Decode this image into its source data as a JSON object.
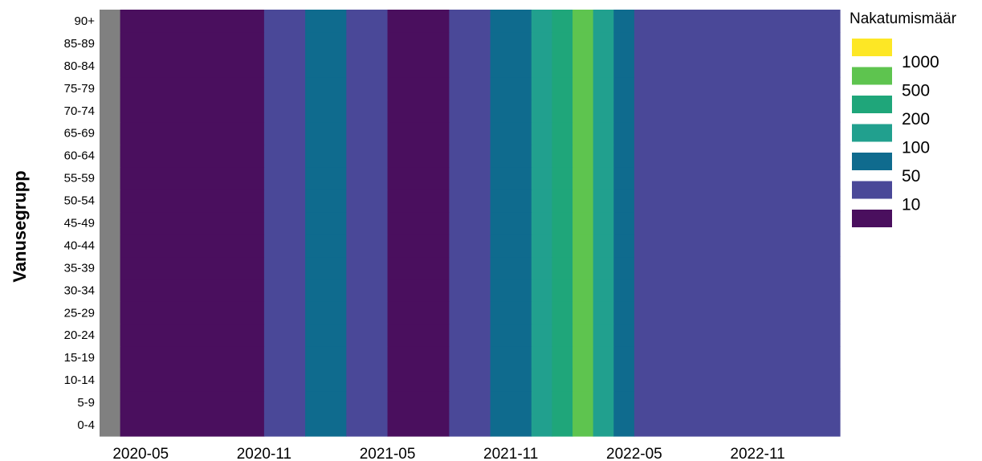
{
  "chart_data": {
    "type": "heatmap",
    "title": "",
    "xlabel": "",
    "ylabel": "Vanusegrupp",
    "y_categories": [
      "0-4",
      "5-9",
      "10-14",
      "15-19",
      "20-24",
      "25-29",
      "30-34",
      "35-39",
      "40-44",
      "45-49",
      "50-54",
      "55-59",
      "60-64",
      "65-69",
      "70-74",
      "75-79",
      "80-84",
      "85-89",
      "90+"
    ],
    "x_range": [
      "2020-03",
      "2023-03"
    ],
    "x_ticks": [
      "2020-05",
      "2020-11",
      "2021-05",
      "2021-11",
      "2022-05",
      "2022-11"
    ],
    "legend": {
      "title": "Nakatumismäär",
      "position": "right",
      "items": [
        {
          "label": "1000",
          "color": "#fde725"
        },
        {
          "label": "500",
          "color": "#5ec44f"
        },
        {
          "label": "200",
          "color": "#1fa67a"
        },
        {
          "label": "100",
          "color": "#21a08e"
        },
        {
          "label": "50",
          "color": "#0f6b8e"
        },
        {
          "label": "10",
          "color": "#4a4898"
        },
        {
          "label": "",
          "color": "#4a0f5e"
        }
      ],
      "labels_shown": [
        "1000",
        "500",
        "200",
        "100",
        "50",
        "10"
      ]
    },
    "colors": {
      "none": "#808080",
      "lt10": "#4a0f5e",
      "c10": "#4a4898",
      "c50": "#0f6b8e",
      "c100": "#21a08e",
      "c200": "#1fa67a",
      "c500": "#5ec44f",
      "c1000": "#fde725"
    },
    "segments": [
      {
        "start": "2020-03",
        "end": "2020-04",
        "level": "none"
      },
      {
        "start": "2020-04",
        "end": "2020-11",
        "level": "lt10"
      },
      {
        "start": "2020-11",
        "end": "2021-01",
        "level": "c10"
      },
      {
        "start": "2021-01",
        "end": "2021-03",
        "level": "c50"
      },
      {
        "start": "2021-03",
        "end": "2021-05",
        "level": "c10"
      },
      {
        "start": "2021-05",
        "end": "2021-08",
        "level": "lt10"
      },
      {
        "start": "2021-08",
        "end": "2021-10",
        "level": "c10"
      },
      {
        "start": "2021-10",
        "end": "2021-12",
        "level": "c50"
      },
      {
        "start": "2021-12",
        "end": "2022-01",
        "level": "c100"
      },
      {
        "start": "2022-01",
        "end": "2022-02",
        "level": "c200"
      },
      {
        "start": "2022-02",
        "end": "2022-03",
        "level": "c500"
      },
      {
        "start": "2022-03",
        "end": "2022-04",
        "level": "c100"
      },
      {
        "start": "2022-04",
        "end": "2022-05",
        "level": "c50"
      },
      {
        "start": "2022-05",
        "end": "2023-03",
        "level": "c10"
      }
    ]
  }
}
